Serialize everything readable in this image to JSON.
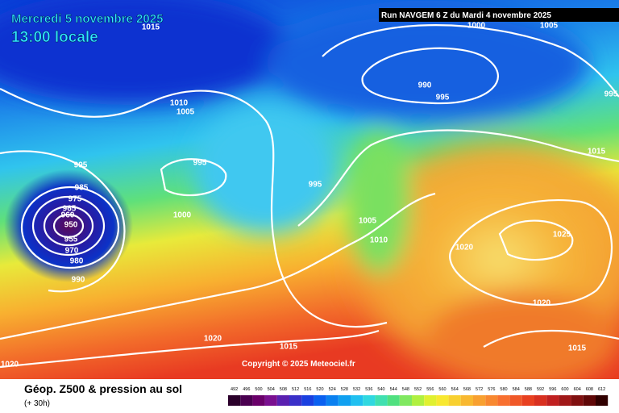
{
  "header": {
    "date": "Mercredi 5 novembre 2025",
    "time": "13:00 locale",
    "run": "Run NAVGEM 6 Z du Mardi 4 novembre 2025"
  },
  "isobar_labels": [
    "1015",
    "1000",
    "1005",
    "990",
    "995",
    "995",
    "1010",
    "1005",
    "1015",
    "995",
    "995",
    "995",
    "985",
    "975",
    "965",
    "960",
    "950",
    "955",
    "970",
    "980",
    "990",
    "1000",
    "1005",
    "1010",
    "1020",
    "1025",
    "1020",
    "1020",
    "1015",
    "1015",
    "1020"
  ],
  "copyright": "Copyright © 2025 Meteociel.fr",
  "footer": {
    "title": "Géop. Z500 & pression au sol",
    "lead": "(+ 30h)"
  },
  "scale": [
    492,
    496,
    500,
    504,
    508,
    512,
    516,
    520,
    524,
    528,
    532,
    536,
    540,
    544,
    548,
    552,
    556,
    560,
    564,
    568,
    572,
    576,
    580,
    584,
    588,
    592,
    596,
    600,
    604,
    608,
    612
  ]
}
